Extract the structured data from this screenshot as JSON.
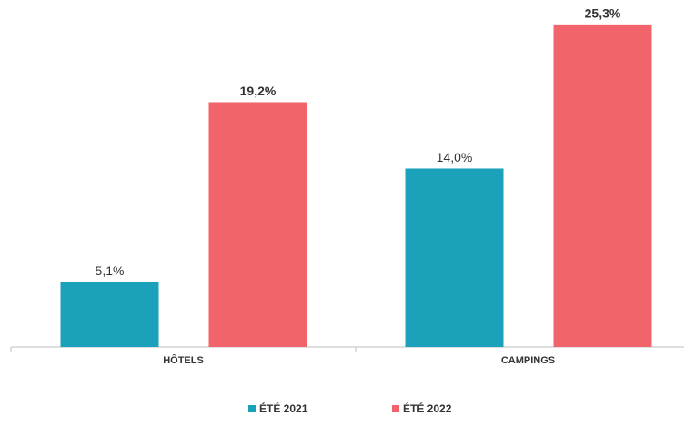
{
  "chart_data": {
    "type": "bar",
    "categories": [
      "HÔTELS",
      "CAMPINGS"
    ],
    "series": [
      {
        "name": "ÉTÉ 2021",
        "color": "#1ba1b9",
        "values": [
          5.1,
          14.0
        ],
        "value_labels": [
          "5,1%",
          "14,0%"
        ]
      },
      {
        "name": "ÉTÉ 2022",
        "color": "#f2646b",
        "values": [
          19.2,
          25.3
        ],
        "value_labels": [
          "19,2%",
          "25,3%"
        ]
      }
    ],
    "ylim": [
      0,
      26.5
    ],
    "legend": "bottom"
  }
}
